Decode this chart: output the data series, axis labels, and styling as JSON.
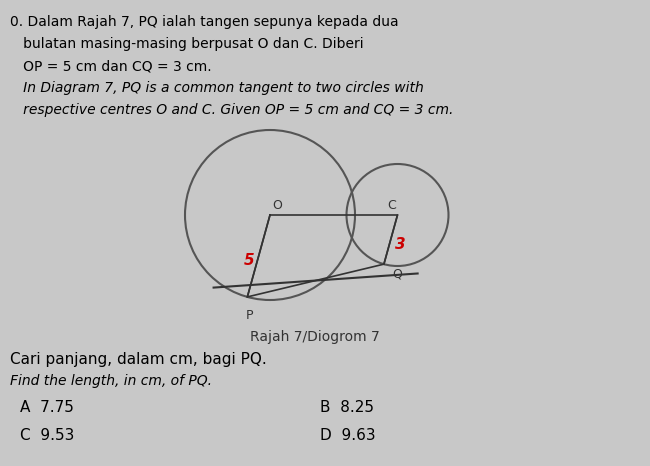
{
  "bg_color": "#c8c8c8",
  "diagram_bg": "#e8e8e8",
  "text_color": "#000000",
  "red_color": "#cc0000",
  "caption": "Rajah 7/Diogrom 7",
  "question_malay": "Cari panjang, dalam cm, bagi PQ.",
  "question_english": "Find the length, in cm, of PQ.",
  "options": [
    "A  7.75",
    "B  8.25",
    "C  9.53",
    "D  9.63"
  ],
  "label_O": "O",
  "label_C": "C",
  "label_P": "P",
  "label_Q": "Q",
  "label_5": "5",
  "label_3": "3",
  "R": 5.0,
  "r": 3.0,
  "OC": 7.5
}
